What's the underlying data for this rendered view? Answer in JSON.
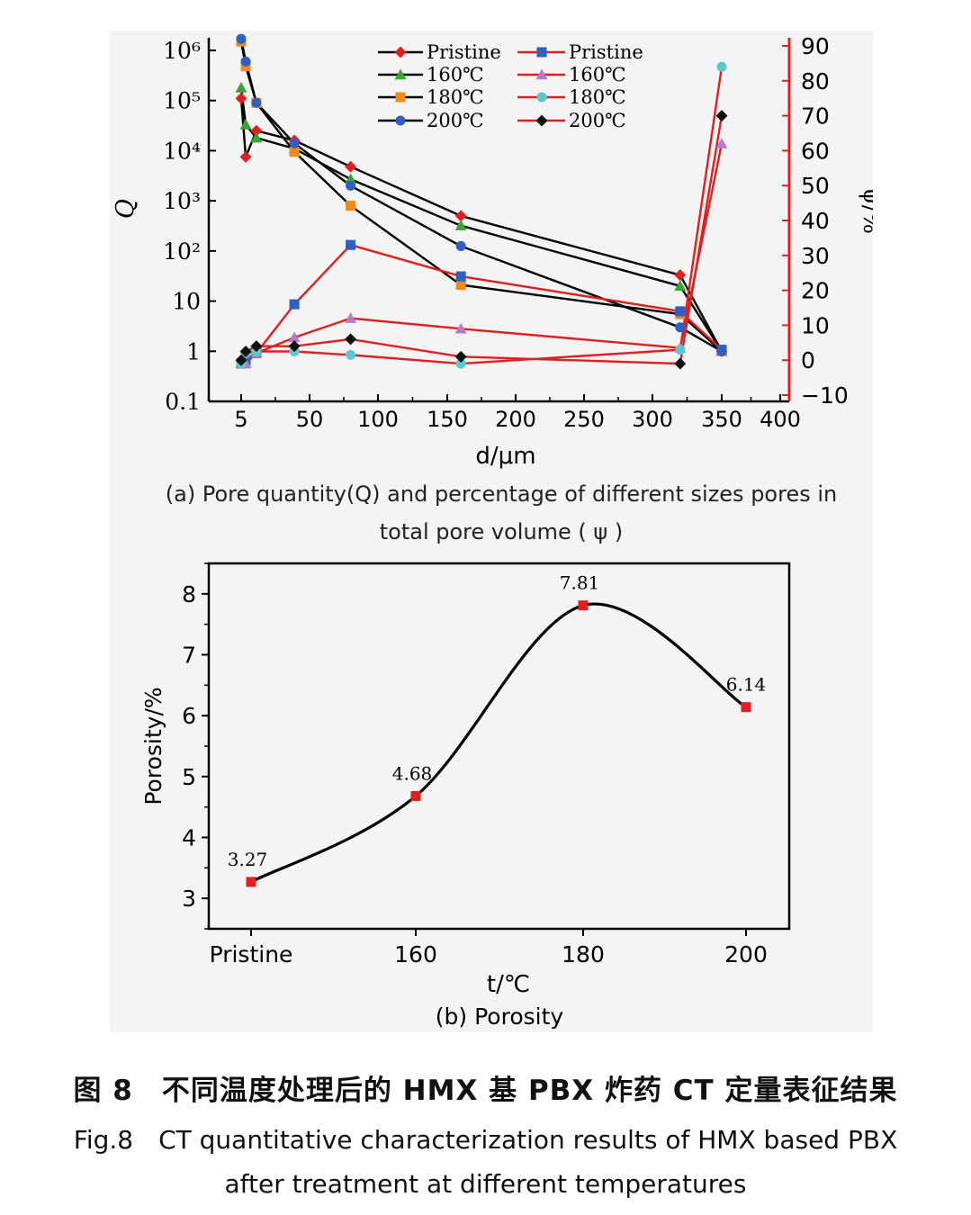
{
  "chart_data": [
    {
      "type": "line",
      "panel_caption": "(a) Pore quantity(Q) and percentage of different sizes pores in total pore volume ( ψ )",
      "xlabel": "d/μm",
      "ylabel_left": "Q",
      "ylabel_right": "ψ/%",
      "x_tick_labels": [
        "5",
        "50",
        "100",
        "150",
        "200",
        "250",
        "300",
        "350",
        "400"
      ],
      "y_left_tick_labels": [
        "0.1",
        "1",
        "10",
        "10²",
        "10³",
        "10⁴",
        "10⁵",
        "10⁶"
      ],
      "y_right_tick_labels": [
        "−10",
        "0",
        "10",
        "20",
        "30",
        "40",
        "50",
        "60",
        "70",
        "80",
        "90"
      ],
      "y_left_scale": "log",
      "y_left_range": [
        0.1,
        1000000
      ],
      "y_right_range": [
        -10,
        90
      ],
      "x_points": [
        5,
        8,
        15,
        40,
        80,
        160,
        320,
        350
      ],
      "legend_placement": "top",
      "series_Q": [
        {
          "name": "Pristine",
          "color": "#e02020",
          "marker": "diamond",
          "values": [
            110000,
            7500,
            25000,
            16000,
            4800,
            500,
            33,
            1
          ]
        },
        {
          "name": "160℃",
          "color": "#3aa534",
          "marker": "triangle",
          "values": [
            180000,
            33000,
            18000,
            11000,
            2700,
            320,
            20,
            1
          ]
        },
        {
          "name": "180℃",
          "color": "#f08a1c",
          "marker": "square",
          "values": [
            1500000,
            480000,
            90000,
            9500,
            800,
            21,
            5.5,
            1
          ]
        },
        {
          "name": "200℃",
          "color": "#2f5fc0",
          "marker": "circle",
          "values": [
            1700000,
            600000,
            90000,
            14000,
            2000,
            125,
            3,
            1
          ]
        }
      ],
      "series_psi": [
        {
          "name": "Pristine",
          "color": "#2f5fc0",
          "marker": "square",
          "values": [
            -1,
            0,
            2,
            16,
            33,
            24,
            14,
            3
          ]
        },
        {
          "name": "160℃",
          "color": "#b57bc8",
          "marker": "triangle",
          "values": [
            -1,
            -1,
            2,
            6.5,
            12,
            9,
            3.5,
            62
          ]
        },
        {
          "name": "180℃",
          "color": "#5ec8cf",
          "marker": "circle",
          "values": [
            -1,
            2,
            2.5,
            2.5,
            1.5,
            -1,
            3,
            84
          ]
        },
        {
          "name": "200℃",
          "color": "#111111",
          "marker": "diamond",
          "values": [
            0,
            2.5,
            4,
            4,
            6,
            1,
            -1,
            70
          ]
        }
      ]
    },
    {
      "type": "line",
      "panel_caption": "(b) Porosity",
      "xlabel": "t/℃",
      "ylabel": "Porosity/%",
      "categories": [
        "Pristine",
        "160",
        "180",
        "200"
      ],
      "values": [
        3.27,
        4.68,
        7.81,
        6.14
      ],
      "data_labels": [
        "3.27",
        "4.68",
        "7.81",
        "6.14"
      ],
      "y_tick_labels": [
        "3",
        "4",
        "5",
        "6",
        "7",
        "8"
      ],
      "ylim": [
        2.5,
        8.5
      ],
      "marker_color": "#e02020",
      "line_color": "#000000"
    }
  ],
  "caption": {
    "cn": "图 8　不同温度处理后的 HMX 基 PBX 炸药 CT 定量表征结果",
    "en_line1": "Fig.8　CT quantitative characterization results of HMX based PBX",
    "en_line2": "after treatment at different temperatures"
  }
}
